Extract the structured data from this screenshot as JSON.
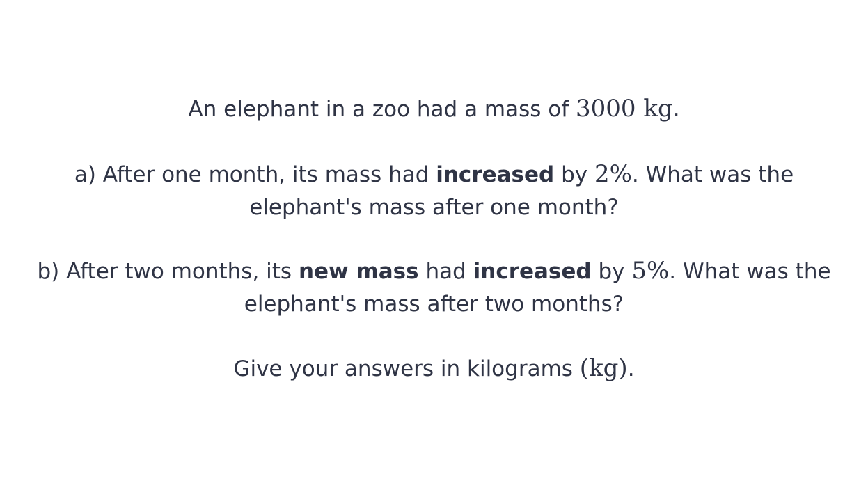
{
  "intro": {
    "text": "An elephant in a zoo had a mass of ",
    "mass": "3000 kg",
    "end": "."
  },
  "part_a": {
    "line1_pre": "a) After one month, its mass had ",
    "line1_bold": "increased",
    "line1_mid": " by ",
    "percent": "2%",
    "line1_post": ". What was the",
    "line2": "elephant's mass after one month?"
  },
  "part_b": {
    "line1_pre": "b) After two months, its ",
    "bold1": "new mass",
    "mid1": " had ",
    "bold2": "increased",
    "mid2": " by ",
    "percent": "5%",
    "line1_post": ". What was the",
    "line2": "elephant's mass after two months?"
  },
  "instruction": {
    "text": "Give your answers in kilograms ",
    "unit": "(kg)",
    "end": "."
  }
}
